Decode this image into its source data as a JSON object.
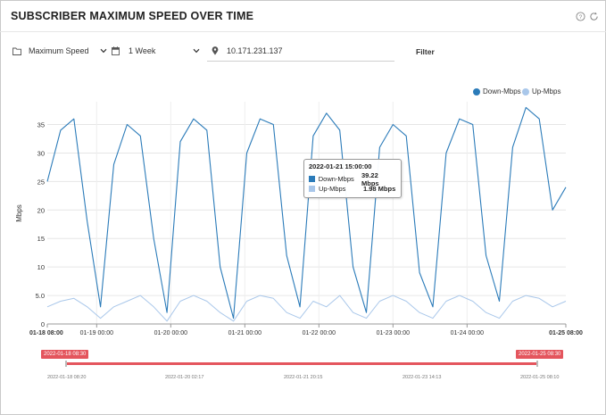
{
  "header": {
    "title": "SUBSCRIBER MAXIMUM SPEED OVER TIME",
    "help_icon": "question-circle-icon",
    "refresh_icon": "refresh-icon"
  },
  "controls": {
    "metric": {
      "icon": "folder-icon",
      "value": "Maximum Speed"
    },
    "period": {
      "icon": "calendar-icon",
      "value": "1 Week"
    },
    "ip": {
      "icon": "location-pin-icon",
      "value": "10.171.231.137"
    },
    "filter_label": "Filter"
  },
  "colors": {
    "down": "#2b7bb9",
    "up": "#a9c7ea",
    "nav": "#e4555d"
  },
  "chart_data": {
    "type": "line",
    "ylabel": "Mbps",
    "ylim": [
      0,
      39
    ],
    "yticks": [
      "0",
      "5.0",
      "10",
      "15",
      "20",
      "25",
      "30",
      "35"
    ],
    "xticks": [
      "01-18 08:00",
      "01-19 00:00",
      "01-20 00:00",
      "01-21 00:00",
      "01-22 00:00",
      "01-23 00:00",
      "01-24 00:00",
      "01-25 08:00"
    ],
    "xrange": [
      "2022-01-18 08:00",
      "2022-01-25 08:00"
    ],
    "legend_position": "top-right",
    "series": [
      {
        "name": "Down-Mbps",
        "sampling": "every 6 hours",
        "values": [
          25,
          34,
          36,
          18,
          3,
          28,
          35,
          33,
          15,
          2,
          32,
          36,
          34,
          10,
          1,
          30,
          36,
          35,
          12,
          3,
          33,
          37,
          34,
          10,
          2,
          31,
          35,
          33,
          9,
          3,
          30,
          36,
          35,
          12,
          4,
          31,
          38,
          36,
          20,
          24
        ]
      },
      {
        "name": "Up-Mbps",
        "sampling": "every 6 hours",
        "values": [
          3,
          4,
          4.5,
          3,
          1,
          3,
          4,
          5,
          3,
          0.5,
          4,
          5,
          4,
          2,
          0.5,
          4,
          5,
          4.5,
          2,
          1,
          4,
          3,
          5,
          2,
          1,
          4,
          5,
          4,
          2,
          1,
          4,
          5,
          4,
          2,
          1,
          4,
          5,
          4.5,
          3,
          4
        ]
      }
    ],
    "tooltip": {
      "title": "2022-01-21  15:00:00",
      "rows": [
        {
          "name": "Down-Mbps",
          "value": "39.22 Mbps"
        },
        {
          "name": "Up-Mbps",
          "value": "1.98 Mbps"
        }
      ]
    },
    "navigator": {
      "start_label": "2022-01-18 08:30",
      "end_label": "2022-01-25 08:30",
      "ticks": [
        "2022-01-18 08:20",
        "2022-01-20 02:17",
        "2022-01-21 20:15",
        "2022-01-23 14:13",
        "2022-01-25 08:10"
      ]
    }
  }
}
